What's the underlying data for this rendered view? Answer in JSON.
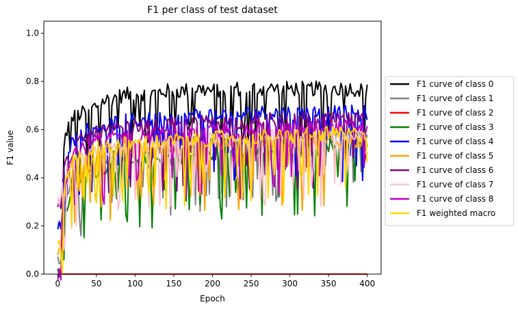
{
  "chart_data": {
    "type": "line",
    "title": "F1 per class of test dataset",
    "xlabel": "Epoch",
    "ylabel": "F1 value",
    "xlim": [
      -18,
      418
    ],
    "ylim": [
      0.0,
      1.05
    ],
    "xticks": [
      0,
      50,
      100,
      150,
      200,
      250,
      300,
      350,
      400
    ],
    "yticks": [
      0.0,
      0.2,
      0.4,
      0.6,
      0.8,
      1.0
    ],
    "ytick_labels": [
      "0.0",
      "0.2",
      "0.4",
      "0.6",
      "0.8",
      "1.0"
    ],
    "grid": false,
    "legend_position": "outside-right",
    "series": [
      {
        "name": "F1 curve of class 0",
        "color": "#000000",
        "x": [
          0,
          10,
          20,
          40,
          60,
          80,
          100,
          120,
          140,
          160,
          180,
          200,
          220,
          240,
          260,
          280,
          300,
          320,
          340,
          360,
          380,
          400
        ],
        "y": [
          0.2,
          0.58,
          0.65,
          0.68,
          0.72,
          0.74,
          0.75,
          0.75,
          0.76,
          0.76,
          0.77,
          0.76,
          0.77,
          0.77,
          0.77,
          0.77,
          0.77,
          0.77,
          0.77,
          0.77,
          0.77,
          0.76
        ]
      },
      {
        "name": "F1 curve of class 1",
        "color": "#808080",
        "x": [
          0,
          10,
          20,
          40,
          60,
          80,
          100,
          120,
          140,
          160,
          180,
          200,
          220,
          240,
          260,
          280,
          300,
          320,
          340,
          360,
          380,
          400
        ],
        "y": [
          0.05,
          0.28,
          0.42,
          0.46,
          0.48,
          0.5,
          0.51,
          0.52,
          0.53,
          0.54,
          0.54,
          0.55,
          0.55,
          0.55,
          0.56,
          0.56,
          0.56,
          0.56,
          0.56,
          0.57,
          0.57,
          0.57
        ]
      },
      {
        "name": "F1 curve of class 2",
        "color": "#ff0000",
        "x": [
          0,
          100,
          200,
          300,
          400
        ],
        "y": [
          0.0,
          0.0,
          0.0,
          0.0,
          0.0
        ]
      },
      {
        "name": "F1 curve of class 3",
        "color": "#008000",
        "x": [
          0,
          10,
          20,
          40,
          60,
          80,
          100,
          120,
          140,
          160,
          180,
          200,
          220,
          240,
          260,
          280,
          300,
          320,
          340,
          360,
          380,
          400
        ],
        "y": [
          0.0,
          0.25,
          0.38,
          0.42,
          0.44,
          0.45,
          0.46,
          0.47,
          0.48,
          0.49,
          0.49,
          0.5,
          0.5,
          0.51,
          0.51,
          0.52,
          0.52,
          0.52,
          0.52,
          0.53,
          0.53,
          0.53
        ]
      },
      {
        "name": "F1 curve of class 4",
        "color": "#0000ff",
        "x": [
          0,
          10,
          20,
          40,
          60,
          80,
          100,
          120,
          140,
          160,
          180,
          200,
          220,
          240,
          260,
          280,
          300,
          320,
          340,
          360,
          380,
          400
        ],
        "y": [
          0.2,
          0.5,
          0.56,
          0.6,
          0.62,
          0.63,
          0.64,
          0.64,
          0.65,
          0.65,
          0.66,
          0.66,
          0.66,
          0.66,
          0.67,
          0.67,
          0.67,
          0.67,
          0.67,
          0.67,
          0.67,
          0.67
        ]
      },
      {
        "name": "F1 curve of class 5",
        "color": "#ffa500",
        "x": [
          0,
          10,
          20,
          40,
          60,
          80,
          100,
          120,
          140,
          160,
          180,
          200,
          220,
          240,
          260,
          280,
          300,
          320,
          340,
          360,
          380,
          400
        ],
        "y": [
          0.1,
          0.38,
          0.46,
          0.49,
          0.5,
          0.51,
          0.52,
          0.52,
          0.53,
          0.53,
          0.53,
          0.54,
          0.54,
          0.54,
          0.54,
          0.55,
          0.55,
          0.55,
          0.55,
          0.55,
          0.55,
          0.55
        ]
      },
      {
        "name": "F1 curve of class 6",
        "color": "#800080",
        "x": [
          0,
          10,
          20,
          40,
          60,
          80,
          100,
          120,
          140,
          160,
          180,
          200,
          220,
          240,
          260,
          280,
          300,
          320,
          340,
          360,
          380,
          400
        ],
        "y": [
          0.28,
          0.45,
          0.53,
          0.57,
          0.59,
          0.6,
          0.61,
          0.61,
          0.62,
          0.62,
          0.63,
          0.63,
          0.63,
          0.63,
          0.64,
          0.64,
          0.64,
          0.64,
          0.64,
          0.64,
          0.64,
          0.64
        ]
      },
      {
        "name": "F1 curve of class 7",
        "color": "#ffc0cb",
        "x": [
          0,
          10,
          20,
          40,
          60,
          80,
          100,
          120,
          140,
          160,
          180,
          200,
          220,
          240,
          260,
          280,
          300,
          320,
          340,
          360,
          380,
          400
        ],
        "y": [
          0.3,
          0.4,
          0.46,
          0.49,
          0.51,
          0.52,
          0.53,
          0.54,
          0.54,
          0.55,
          0.55,
          0.56,
          0.56,
          0.56,
          0.57,
          0.57,
          0.57,
          0.57,
          0.57,
          0.58,
          0.58,
          0.58
        ]
      },
      {
        "name": "F1 curve of class 8",
        "color": "#bf00bf",
        "x": [
          0,
          10,
          20,
          40,
          60,
          80,
          100,
          120,
          140,
          160,
          180,
          200,
          220,
          240,
          260,
          280,
          300,
          320,
          340,
          360,
          380,
          400
        ],
        "y": [
          0.0,
          0.4,
          0.5,
          0.54,
          0.56,
          0.57,
          0.57,
          0.58,
          0.58,
          0.59,
          0.59,
          0.59,
          0.6,
          0.6,
          0.6,
          0.6,
          0.6,
          0.6,
          0.61,
          0.61,
          0.61,
          0.61
        ]
      },
      {
        "name": "F1 weighted macro",
        "color": "#ffd700",
        "x": [
          0,
          10,
          20,
          40,
          60,
          80,
          100,
          120,
          140,
          160,
          180,
          200,
          220,
          240,
          260,
          280,
          300,
          320,
          340,
          360,
          380,
          400
        ],
        "y": [
          0.12,
          0.4,
          0.48,
          0.51,
          0.53,
          0.54,
          0.54,
          0.55,
          0.55,
          0.56,
          0.56,
          0.56,
          0.57,
          0.57,
          0.57,
          0.57,
          0.57,
          0.58,
          0.58,
          0.58,
          0.58,
          0.58
        ]
      }
    ]
  }
}
